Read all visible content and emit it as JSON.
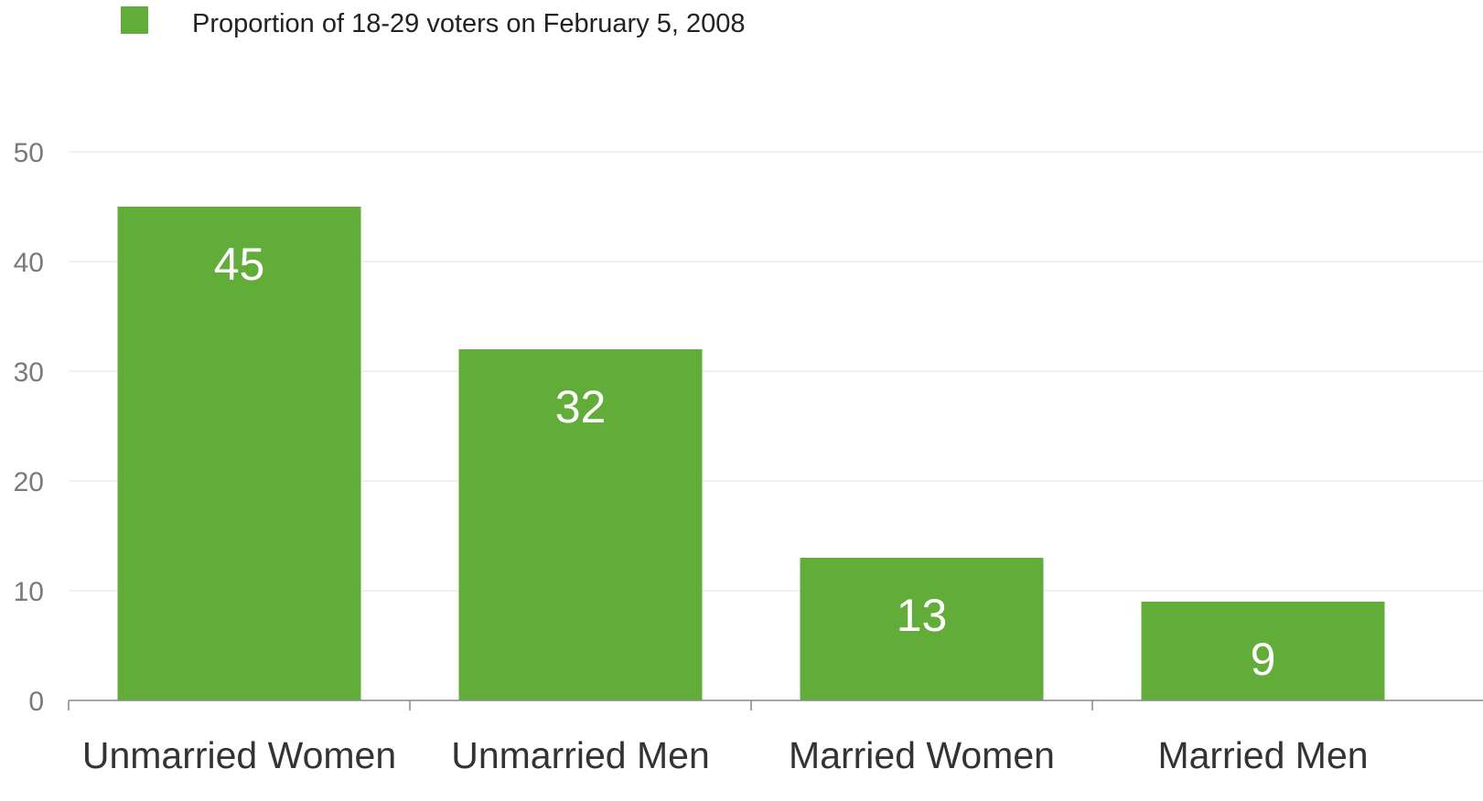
{
  "chart_data": {
    "type": "bar",
    "categories": [
      "Unmarried Women",
      "Unmarried Men",
      "Married Women",
      "Married Men"
    ],
    "series": [
      {
        "name": "Proportion of 18-29 voters on February 5, 2008",
        "values": [
          45,
          32,
          13,
          9
        ],
        "color": "#62ac39"
      }
    ],
    "data_labels": [
      "45",
      "32",
      "13",
      "9"
    ],
    "title": "",
    "xlabel": "",
    "ylabel": "",
    "ylim": [
      0,
      50
    ],
    "yticks": [
      0,
      10,
      20,
      30,
      40,
      50
    ],
    "ytick_labels": [
      "0",
      "10",
      "20",
      "30",
      "40",
      "50"
    ],
    "grid": true,
    "legend_position": "top-left"
  }
}
